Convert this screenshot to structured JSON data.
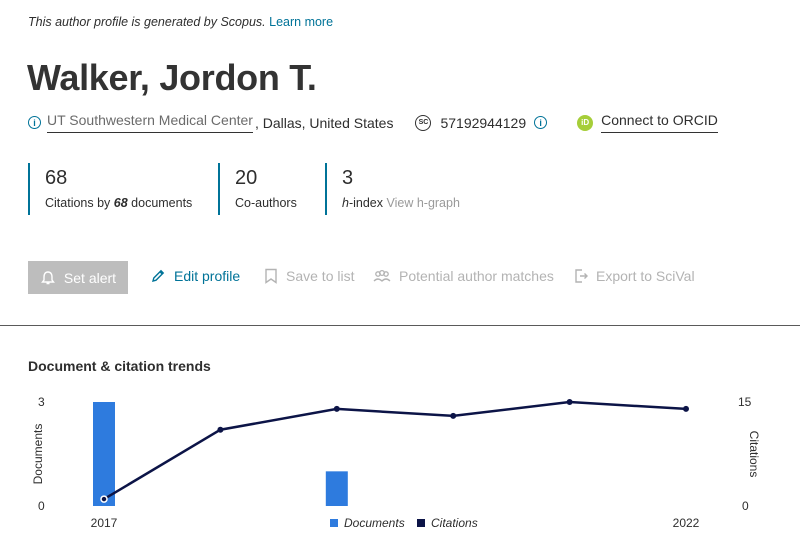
{
  "notice": {
    "text": "This author profile is generated by Scopus.",
    "link": "Learn more"
  },
  "author": {
    "name": "Walker, Jordon T.",
    "institution": "UT Southwestern Medical Center",
    "location": ", Dallas, United States",
    "scopus_id": "57192944129",
    "orcid_link": "Connect to ORCID"
  },
  "metrics": {
    "citations": {
      "value": "68",
      "label_prefix": "Citations by ",
      "documents": "68",
      "label_suffix": " documents"
    },
    "coauthors": {
      "value": "20",
      "label": "Co-authors"
    },
    "hindex": {
      "value": "3",
      "label": "h",
      "label_rest": "-index ",
      "link": "View h-graph"
    }
  },
  "actions": {
    "set_alert": "Set alert",
    "edit_profile": "Edit profile",
    "save_to_list": "Save to list",
    "potential_matches": "Potential author matches",
    "export_scival": "Export to SciVal"
  },
  "trends": {
    "title": "Document & citation trends"
  },
  "chart_data": {
    "type": "bar",
    "title": "Document & citation trends",
    "x_tick_labels": [
      "2017",
      "2022"
    ],
    "years": [
      2017,
      2018,
      2019,
      2020,
      2021,
      2022
    ],
    "series": [
      {
        "name": "Documents",
        "type": "bar",
        "axis": "left",
        "color": "#2e7bde",
        "values": [
          3,
          0,
          1,
          0,
          0,
          0
        ]
      },
      {
        "name": "Citations",
        "type": "line",
        "axis": "right",
        "color": "#0c1447",
        "values": [
          1,
          11,
          14,
          13,
          15,
          14
        ]
      }
    ],
    "ylabel_left": "Documents",
    "ylabel_right": "Citations",
    "ylim_left": [
      0,
      3
    ],
    "ylim_right": [
      0,
      15
    ],
    "legend_position": "bottom-center"
  }
}
